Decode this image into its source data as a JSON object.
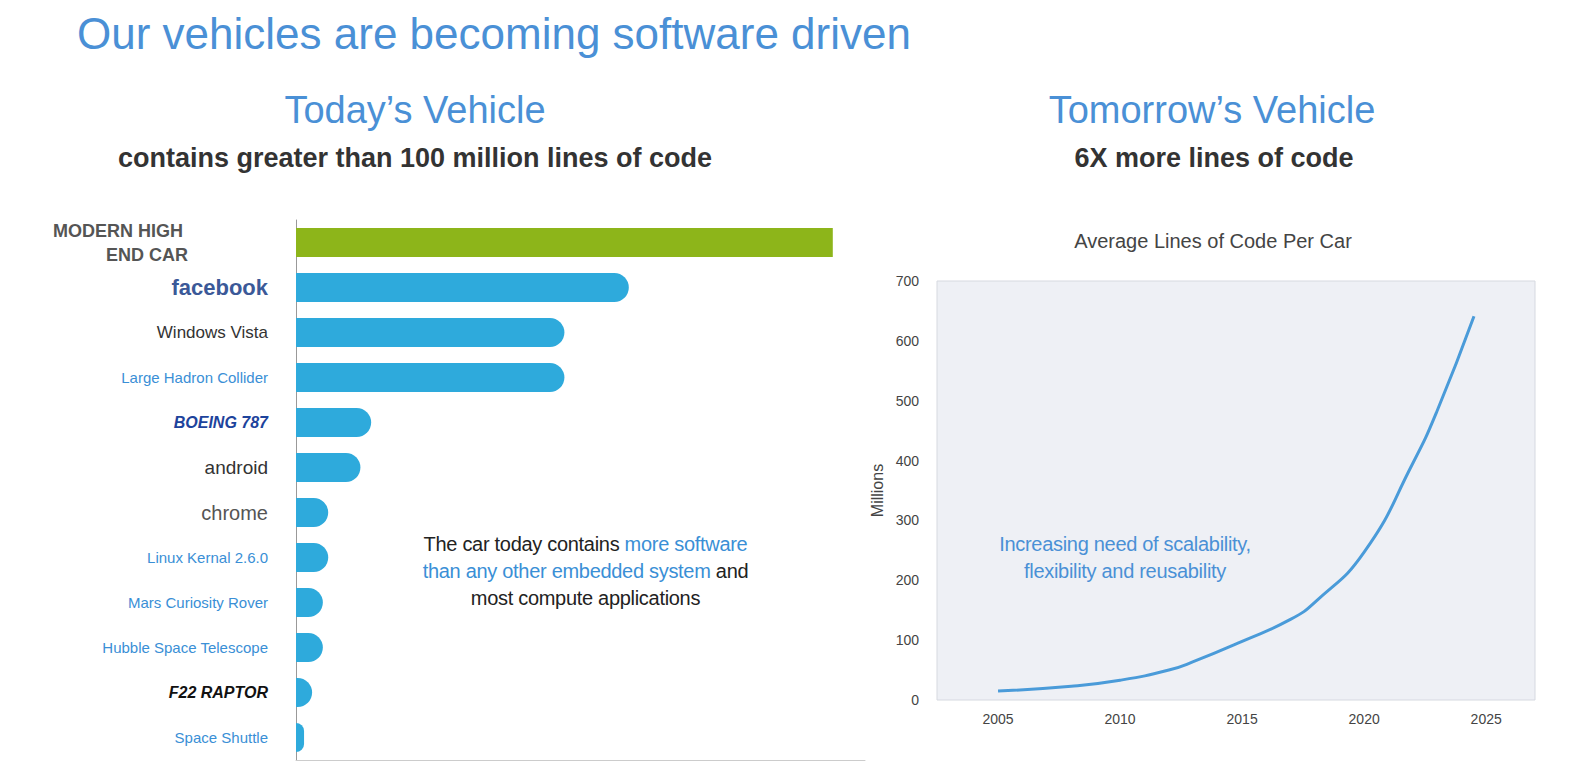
{
  "title": "Our vehicles are becoming software driven",
  "chart_data": [
    {
      "type": "bar",
      "orientation": "horizontal",
      "heading": "Today’s Vehicle",
      "subtitle": "contains greater than 100 million lines of code",
      "subtitle_emphasis": "100 million",
      "categories": [
        "MODERN HIGH END CAR",
        "facebook",
        "Windows Vista",
        "Large Hadron Collider",
        "BOEING 787",
        "android",
        "chrome",
        "Linux Kernal 2.6.0",
        "Mars Curiosity Rover",
        "Hubble Space Telescope",
        "F22 RAPTOR",
        "Space Shuttle"
      ],
      "values": [
        100,
        62,
        50,
        50,
        14,
        12,
        6,
        6,
        5,
        5,
        3,
        1.5
      ],
      "colors": [
        "#8db51a",
        "#2eaadc",
        "#2eaadc",
        "#2eaadc",
        "#2eaadc",
        "#2eaadc",
        "#2eaadc",
        "#2eaadc",
        "#2eaadc",
        "#2eaadc",
        "#2eaadc",
        "#2eaadc"
      ],
      "xlim": [
        0,
        106
      ],
      "tick_labels": "y",
      "grid": false,
      "annotation": "The car today contains more software than any other embedded system and most compute applications",
      "annotation_emphasis": "more software than any other embedded system"
    },
    {
      "type": "line",
      "heading": "Tomorrow’s Vehicle",
      "subtitle": "6X more lines of code",
      "subtitle_emphasis": "6X",
      "title": "Average Lines of Code Per Car",
      "ylabel": "Millions",
      "x": [
        2005,
        2008,
        2010,
        2012,
        2013,
        2015,
        2017,
        2018,
        2020,
        2022,
        2023,
        2024.5
      ],
      "values": [
        15,
        23,
        33,
        50,
        64,
        98,
        135,
        164,
        247,
        396,
        484,
        641
      ],
      "color": "#4a9bd9",
      "xlim": [
        2002.5,
        2027
      ],
      "xticks": [
        2005,
        2010,
        2015,
        2020,
        2025
      ],
      "ylim": [
        0,
        700
      ],
      "yticks": [
        0,
        100,
        200,
        300,
        400,
        500,
        600,
        700
      ],
      "grid": false,
      "annotation": "Increasing need of scalability, flexibility and reusability"
    }
  ]
}
